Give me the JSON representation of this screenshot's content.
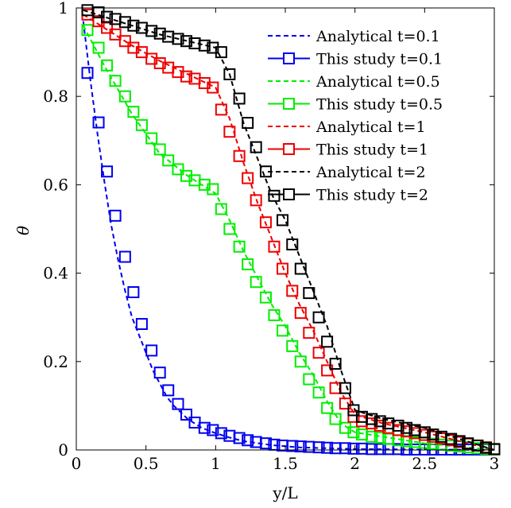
{
  "chart_data": {
    "type": "line",
    "xlabel": "y/L",
    "ylabel": "θ",
    "xlim": [
      0,
      3
    ],
    "ylim": [
      0,
      1
    ],
    "xticks": [
      "0",
      "0.5",
      "1",
      "1.5",
      "2",
      "2.5",
      "3"
    ],
    "yticks": [
      "0",
      "0.2",
      "0.4",
      "0.6",
      "0.8",
      "1"
    ],
    "legend_position": "top-right",
    "series": [
      {
        "name": "Analytical t=0.1",
        "kind": "analytical",
        "color": "#0000ee",
        "x": [
          0.05,
          0.1,
          0.15,
          0.2,
          0.25,
          0.3,
          0.35,
          0.4,
          0.45,
          0.5,
          0.55,
          0.6,
          0.65,
          0.7,
          0.75,
          0.8,
          0.9,
          1.0,
          1.1,
          1.2,
          1.4,
          1.6,
          1.8,
          2.0,
          2.5,
          3.0
        ],
        "y": [
          0.97,
          0.84,
          0.72,
          0.61,
          0.51,
          0.43,
          0.36,
          0.3,
          0.26,
          0.22,
          0.18,
          0.15,
          0.12,
          0.1,
          0.085,
          0.07,
          0.05,
          0.038,
          0.028,
          0.02,
          0.011,
          0.006,
          0.004,
          0.002,
          0.001,
          0.0
        ]
      },
      {
        "name": "This study t=0.1",
        "kind": "study",
        "color": "#0000ee",
        "x": [
          0.08,
          0.16,
          0.22,
          0.28,
          0.35,
          0.41,
          0.47,
          0.54,
          0.6,
          0.66,
          0.73,
          0.79,
          0.85,
          0.92,
          0.98,
          1.04,
          1.1,
          1.17,
          1.23,
          1.29,
          1.36,
          1.42,
          1.48,
          1.55,
          1.61,
          1.67,
          1.74,
          1.8,
          1.86,
          1.93,
          1.99,
          2.05,
          2.12,
          2.18,
          2.24,
          2.31,
          2.37,
          2.43,
          2.5,
          2.56,
          2.62,
          2.69,
          2.75,
          2.81,
          2.88,
          2.94,
          3.0
        ],
        "y": [
          0.853,
          0.741,
          0.63,
          0.53,
          0.437,
          0.357,
          0.285,
          0.225,
          0.175,
          0.135,
          0.104,
          0.08,
          0.062,
          0.05,
          0.045,
          0.038,
          0.032,
          0.027,
          0.022,
          0.018,
          0.015,
          0.012,
          0.01,
          0.009,
          0.008,
          0.007,
          0.006,
          0.005,
          0.004,
          0.004,
          0.003,
          0.003,
          0.002,
          0.002,
          0.002,
          0.002,
          0.001,
          0.001,
          0.001,
          0.001,
          0.001,
          0.001,
          0.001,
          0.001,
          0.001,
          0.001,
          0.001
        ]
      },
      {
        "name": "Analytical t=0.5",
        "kind": "analytical",
        "color": "#00ee00",
        "x": [
          0.05,
          0.2,
          0.4,
          0.6,
          0.8,
          1.0,
          1.1,
          1.2,
          1.3,
          1.4,
          1.5,
          1.6,
          1.7,
          1.8,
          1.9,
          2.0,
          2.2,
          2.5,
          3.0
        ],
        "y": [
          0.96,
          0.87,
          0.76,
          0.67,
          0.62,
          0.58,
          0.52,
          0.45,
          0.39,
          0.33,
          0.28,
          0.22,
          0.17,
          0.11,
          0.06,
          0.04,
          0.03,
          0.015,
          0.0
        ]
      },
      {
        "name": "This study t=0.5",
        "kind": "study",
        "color": "#00ee00",
        "x": [
          0.08,
          0.16,
          0.22,
          0.28,
          0.35,
          0.41,
          0.47,
          0.54,
          0.6,
          0.66,
          0.73,
          0.79,
          0.85,
          0.92,
          0.98,
          1.04,
          1.1,
          1.17,
          1.23,
          1.29,
          1.36,
          1.42,
          1.48,
          1.55,
          1.61,
          1.67,
          1.74,
          1.8,
          1.86,
          1.93,
          1.99,
          2.05,
          2.12,
          2.18,
          2.24,
          2.31,
          2.37,
          2.43,
          2.5,
          2.56,
          2.62,
          2.69,
          2.75,
          2.81,
          2.88,
          2.94,
          3.0
        ],
        "y": [
          0.95,
          0.91,
          0.87,
          0.835,
          0.8,
          0.765,
          0.735,
          0.705,
          0.68,
          0.655,
          0.635,
          0.62,
          0.61,
          0.6,
          0.59,
          0.545,
          0.5,
          0.46,
          0.42,
          0.38,
          0.345,
          0.305,
          0.27,
          0.235,
          0.2,
          0.16,
          0.13,
          0.095,
          0.07,
          0.05,
          0.04,
          0.035,
          0.03,
          0.028,
          0.025,
          0.022,
          0.02,
          0.018,
          0.016,
          0.014,
          0.012,
          0.01,
          0.008,
          0.006,
          0.004,
          0.002,
          0.001
        ]
      },
      {
        "name": "Analytical t=1",
        "kind": "analytical",
        "color": "#ee0000",
        "x": [
          0.05,
          0.2,
          0.4,
          0.6,
          0.8,
          1.0,
          1.1,
          1.2,
          1.3,
          1.4,
          1.5,
          1.6,
          1.7,
          1.8,
          1.9,
          2.0,
          2.2,
          2.5,
          3.0
        ],
        "y": [
          0.985,
          0.955,
          0.915,
          0.88,
          0.85,
          0.82,
          0.75,
          0.65,
          0.56,
          0.48,
          0.4,
          0.33,
          0.27,
          0.2,
          0.13,
          0.08,
          0.06,
          0.04,
          0.0
        ]
      },
      {
        "name": "This study t=1",
        "kind": "study",
        "color": "#ee0000",
        "x": [
          0.08,
          0.16,
          0.22,
          0.28,
          0.35,
          0.41,
          0.47,
          0.54,
          0.6,
          0.66,
          0.73,
          0.79,
          0.85,
          0.92,
          0.98,
          1.04,
          1.1,
          1.17,
          1.23,
          1.29,
          1.36,
          1.42,
          1.48,
          1.55,
          1.61,
          1.67,
          1.74,
          1.8,
          1.86,
          1.93,
          1.99,
          2.05,
          2.12,
          2.18,
          2.24,
          2.31,
          2.37,
          2.43,
          2.5,
          2.56,
          2.62,
          2.69,
          2.75,
          2.81,
          2.88,
          2.94,
          3.0
        ],
        "y": [
          0.985,
          0.97,
          0.955,
          0.94,
          0.925,
          0.91,
          0.9,
          0.885,
          0.875,
          0.865,
          0.855,
          0.845,
          0.84,
          0.83,
          0.82,
          0.77,
          0.72,
          0.665,
          0.615,
          0.565,
          0.515,
          0.46,
          0.41,
          0.36,
          0.31,
          0.265,
          0.22,
          0.18,
          0.14,
          0.105,
          0.075,
          0.065,
          0.06,
          0.055,
          0.05,
          0.045,
          0.042,
          0.038,
          0.034,
          0.03,
          0.026,
          0.022,
          0.018,
          0.014,
          0.01,
          0.006,
          0.002
        ]
      },
      {
        "name": "Analytical t=2",
        "kind": "analytical",
        "color": "#000000",
        "x": [
          0.05,
          0.2,
          0.4,
          0.6,
          0.8,
          1.0,
          1.1,
          1.2,
          1.3,
          1.4,
          1.5,
          1.6,
          1.7,
          1.8,
          1.9,
          2.0,
          2.2,
          2.5,
          3.0
        ],
        "y": [
          0.995,
          0.98,
          0.96,
          0.94,
          0.925,
          0.91,
          0.85,
          0.74,
          0.66,
          0.58,
          0.52,
          0.44,
          0.36,
          0.28,
          0.18,
          0.09,
          0.07,
          0.05,
          0.0
        ]
      },
      {
        "name": "This study t=2",
        "kind": "study",
        "color": "#000000",
        "x": [
          0.08,
          0.16,
          0.22,
          0.28,
          0.35,
          0.41,
          0.47,
          0.54,
          0.6,
          0.66,
          0.73,
          0.79,
          0.85,
          0.92,
          0.98,
          1.04,
          1.1,
          1.17,
          1.23,
          1.29,
          1.36,
          1.42,
          1.48,
          1.55,
          1.61,
          1.67,
          1.74,
          1.8,
          1.86,
          1.93,
          1.99,
          2.05,
          2.12,
          2.18,
          2.24,
          2.31,
          2.37,
          2.43,
          2.5,
          2.56,
          2.62,
          2.69,
          2.75,
          2.81,
          2.88,
          2.94,
          3.0
        ],
        "y": [
          0.995,
          0.99,
          0.98,
          0.975,
          0.968,
          0.96,
          0.955,
          0.948,
          0.942,
          0.935,
          0.93,
          0.925,
          0.92,
          0.915,
          0.91,
          0.9,
          0.85,
          0.795,
          0.74,
          0.685,
          0.63,
          0.575,
          0.52,
          0.465,
          0.41,
          0.355,
          0.3,
          0.245,
          0.195,
          0.14,
          0.09,
          0.075,
          0.07,
          0.065,
          0.06,
          0.055,
          0.05,
          0.045,
          0.04,
          0.035,
          0.03,
          0.025,
          0.02,
          0.015,
          0.01,
          0.005,
          0.002
        ]
      }
    ]
  }
}
